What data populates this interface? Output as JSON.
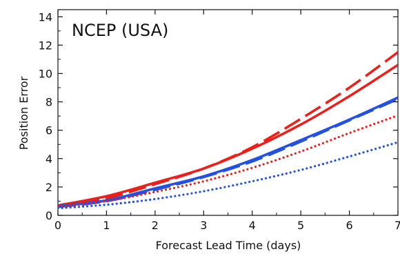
{
  "chart_data": {
    "type": "line",
    "title": "NCEP (USA)",
    "xlabel": "Forecast Lead Time (days)",
    "ylabel": "Position Error",
    "xlim": [
      0,
      7
    ],
    "ylim": [
      0,
      14.5
    ],
    "xticks": [
      0,
      1,
      2,
      3,
      4,
      5,
      6,
      7
    ],
    "yticks": [
      0,
      2,
      4,
      6,
      8,
      10,
      12,
      14
    ],
    "grid": false,
    "series": [
      {
        "color": "#e8211c",
        "dash": "dashed",
        "x": [
          0,
          1,
          2,
          3,
          4,
          5,
          6,
          7
        ],
        "y": [
          0.6,
          1.2,
          2.2,
          3.3,
          4.8,
          6.8,
          9.0,
          11.5
        ]
      },
      {
        "color": "#e8211c",
        "dash": "solid",
        "x": [
          0,
          1,
          2,
          3,
          4,
          5,
          6,
          7
        ],
        "y": [
          0.7,
          1.35,
          2.3,
          3.3,
          4.7,
          6.4,
          8.4,
          10.6
        ]
      },
      {
        "color": "#2450e0",
        "dash": "solid",
        "x": [
          0,
          1,
          2,
          3,
          4,
          5,
          6,
          7
        ],
        "y": [
          0.65,
          1.05,
          1.9,
          2.75,
          3.9,
          5.3,
          6.75,
          8.3
        ]
      },
      {
        "color": "#2450e0",
        "dash": "dashed",
        "x": [
          0,
          1,
          2,
          3,
          4,
          5,
          6,
          7
        ],
        "y": [
          0.6,
          1.0,
          1.8,
          2.7,
          3.8,
          5.2,
          6.7,
          8.2
        ]
      },
      {
        "color": "#e8211c",
        "dash": "dotted",
        "x": [
          0,
          1,
          2,
          3,
          4,
          5,
          6,
          7
        ],
        "y": [
          0.6,
          1.0,
          1.65,
          2.4,
          3.35,
          4.5,
          5.8,
          7.05
        ]
      },
      {
        "color": "#2450e0",
        "dash": "dotted",
        "x": [
          0,
          1,
          2,
          3,
          4,
          5,
          6,
          7
        ],
        "y": [
          0.5,
          0.75,
          1.15,
          1.7,
          2.4,
          3.2,
          4.15,
          5.15
        ]
      }
    ]
  }
}
